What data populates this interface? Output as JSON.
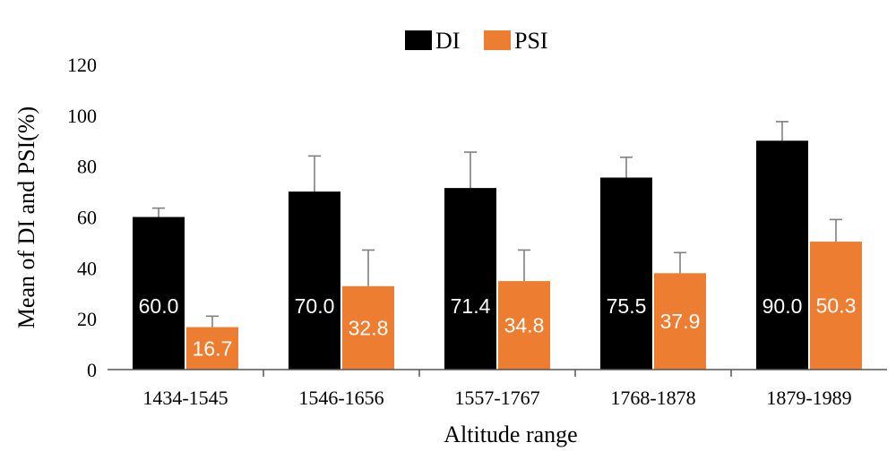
{
  "chart_data": {
    "type": "bar",
    "title": "",
    "xlabel": "Altitude range",
    "ylabel": "Mean of  DI and PSI(%)",
    "ylim": [
      0,
      120
    ],
    "yticks": [
      "0",
      "20",
      "40",
      "60",
      "80",
      "100",
      "120"
    ],
    "grid": false,
    "legend_position": "top-center",
    "categories": [
      "1434-1545",
      "1546-1656",
      "1557-1767",
      "1768-1878",
      "1879-1989"
    ],
    "series": [
      {
        "name": "DI",
        "color": "#000000",
        "values": [
          60.0,
          70.0,
          71.4,
          75.5,
          90.0
        ],
        "error_upper": [
          63.5,
          84.0,
          85.5,
          83.5,
          97.5
        ],
        "labels": [
          "60.0",
          "70.0",
          "71.4",
          "75.5",
          "90.0"
        ]
      },
      {
        "name": "PSI",
        "color": "#ED7D31",
        "values": [
          16.7,
          32.8,
          34.8,
          37.9,
          50.3
        ],
        "error_upper": [
          21.0,
          47.0,
          47.0,
          46.0,
          59.0
        ],
        "labels": [
          "16.7",
          "32.8",
          "34.8",
          "37.9",
          "50.3"
        ]
      }
    ]
  }
}
